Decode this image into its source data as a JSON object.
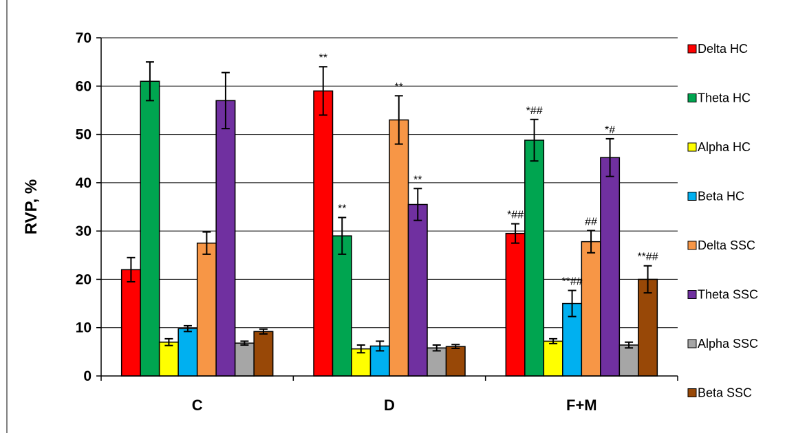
{
  "chart_data": {
    "type": "bar",
    "title": "",
    "xlabel": "",
    "ylabel": "RVP, %",
    "ylim": [
      0,
      70
    ],
    "yticks": [
      0,
      10,
      20,
      30,
      40,
      50,
      60,
      70
    ],
    "grid": true,
    "legend_position": "right",
    "categories": [
      "C",
      "D",
      "F+M"
    ],
    "series": [
      {
        "name": "Delta HC",
        "color": "#ff0000",
        "values": [
          22,
          59,
          29.5
        ],
        "errors": [
          2.5,
          5,
          2
        ],
        "annotations": [
          "",
          "**",
          "*##"
        ]
      },
      {
        "name": "Theta HC",
        "color": "#00a550",
        "values": [
          61,
          29,
          48.8
        ],
        "errors": [
          4,
          3.8,
          4.3
        ],
        "annotations": [
          "",
          "**",
          "*##"
        ]
      },
      {
        "name": "Alpha HC",
        "color": "#ffff00",
        "values": [
          7,
          5.6,
          7.2
        ],
        "errors": [
          0.7,
          0.8,
          0.5
        ],
        "annotations": [
          "",
          "",
          ""
        ]
      },
      {
        "name": "Beta HC",
        "color": "#00b0f0",
        "values": [
          9.8,
          6.2,
          15
        ],
        "errors": [
          0.6,
          1,
          2.7
        ],
        "annotations": [
          "",
          "",
          "**##"
        ]
      },
      {
        "name": "Delta SSC",
        "color": "#f79646",
        "values": [
          27.5,
          53,
          27.8
        ],
        "errors": [
          2.3,
          5,
          2.3
        ],
        "annotations": [
          "",
          "**",
          "##"
        ]
      },
      {
        "name": "Theta SSC",
        "color": "#7030a0",
        "values": [
          57,
          35.5,
          45.2
        ],
        "errors": [
          5.8,
          3.3,
          3.9
        ],
        "annotations": [
          "",
          "**",
          "*#"
        ]
      },
      {
        "name": "Alpha SSC",
        "color": "#a6a6a6",
        "values": [
          6.8,
          5.8,
          6.4
        ],
        "errors": [
          0.4,
          0.6,
          0.6
        ],
        "annotations": [
          "",
          "",
          ""
        ]
      },
      {
        "name": "Beta SSC",
        "color": "#984807",
        "values": [
          9.2,
          6.1,
          20
        ],
        "errors": [
          0.5,
          0.4,
          2.8
        ],
        "annotations": [
          "",
          "",
          "**##"
        ]
      }
    ]
  }
}
